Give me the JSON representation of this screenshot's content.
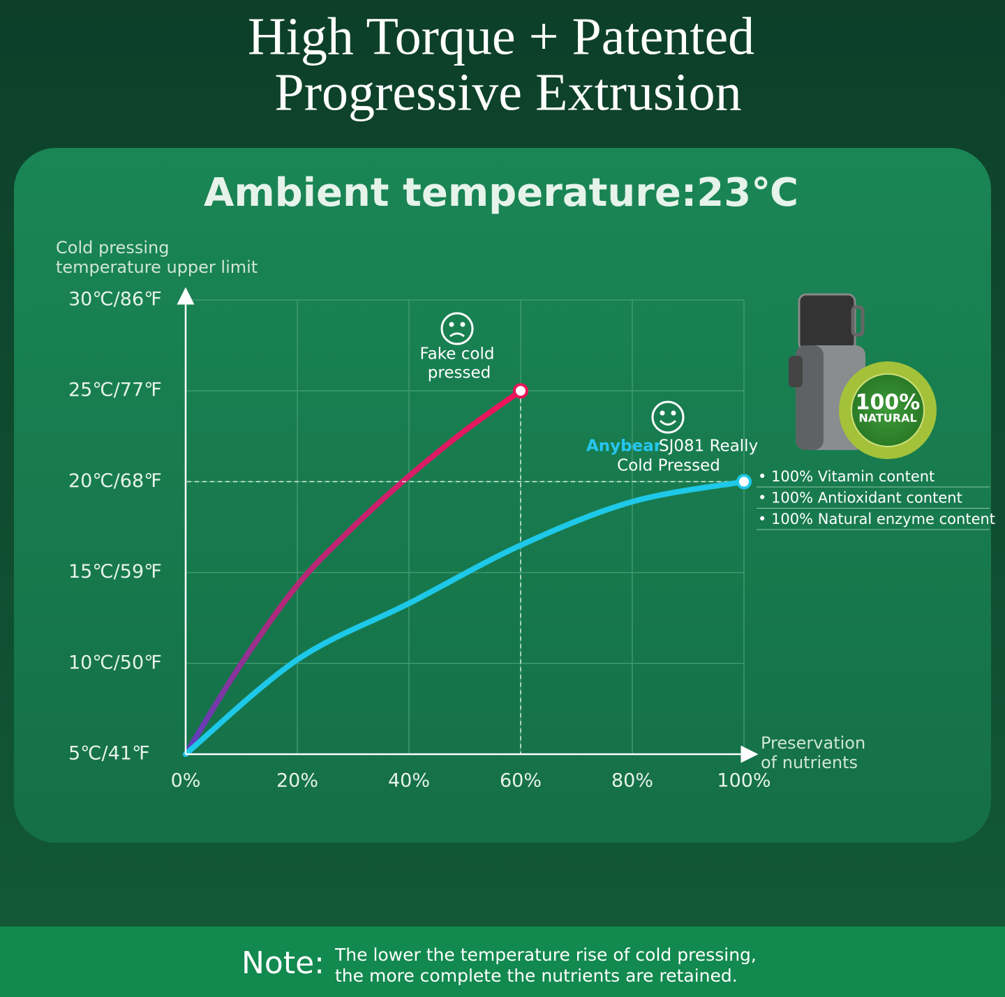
{
  "chart_data": {
    "type": "line",
    "title": [
      "High Torque + Patented",
      "Progressive Extrusion"
    ],
    "subtitle": "Ambient temperature:23℃",
    "y_label": [
      "Cold pressing",
      "temperature upper limit"
    ],
    "x_label": [
      "Preservation",
      "of nutrients"
    ],
    "xlim": [
      0,
      100
    ],
    "xticks": [
      {
        "value": 0,
        "label": "0%"
      },
      {
        "value": 20,
        "label": "20%"
      },
      {
        "value": 40,
        "label": "40%"
      },
      {
        "value": 60,
        "label": "60%"
      },
      {
        "value": 80,
        "label": "80%"
      },
      {
        "value": 100,
        "label": "100%"
      }
    ],
    "ylim": [
      5,
      30
    ],
    "yticks": [
      {
        "value": 5,
        "label": "5℃/41℉"
      },
      {
        "value": 10,
        "label": "10℃/50℉"
      },
      {
        "value": 15,
        "label": "15℃/59℉"
      },
      {
        "value": 20,
        "label": "20℃/68℉"
      },
      {
        "value": 25,
        "label": "25℃/77℉"
      },
      {
        "value": 30,
        "label": "30℃/86℉"
      }
    ],
    "grid": true,
    "series": [
      {
        "name": "Fake cold pressed",
        "color": "#e8145a",
        "x": [
          0,
          10,
          20,
          30,
          40,
          50,
          60
        ],
        "values": [
          5,
          10,
          14.3,
          17.5,
          20.3,
          22.8,
          25
        ]
      },
      {
        "name": "Anybear SJ081 Really Cold Pressed",
        "color": "#1ec8e8",
        "x": [
          0,
          20,
          40,
          60,
          80,
          100
        ],
        "values": [
          5,
          10.2,
          13.3,
          16.5,
          18.9,
          20
        ]
      }
    ],
    "annotations": {
      "fake": [
        "Fake cold",
        "pressed"
      ],
      "anybear_brand": "Anybear",
      "anybear": [
        "SJ081 Really",
        "Cold Pressed"
      ]
    },
    "badge": [
      "100%",
      "NATURAL"
    ],
    "benefits": [
      "• 100% Vitamin content",
      "• 100% Antioxidant content",
      "• 100% Natural enzyme content"
    ],
    "note": {
      "label": "Note:",
      "text": [
        "The lower the temperature rise of cold pressing,",
        "the more complete the nutrients are retained."
      ]
    }
  }
}
